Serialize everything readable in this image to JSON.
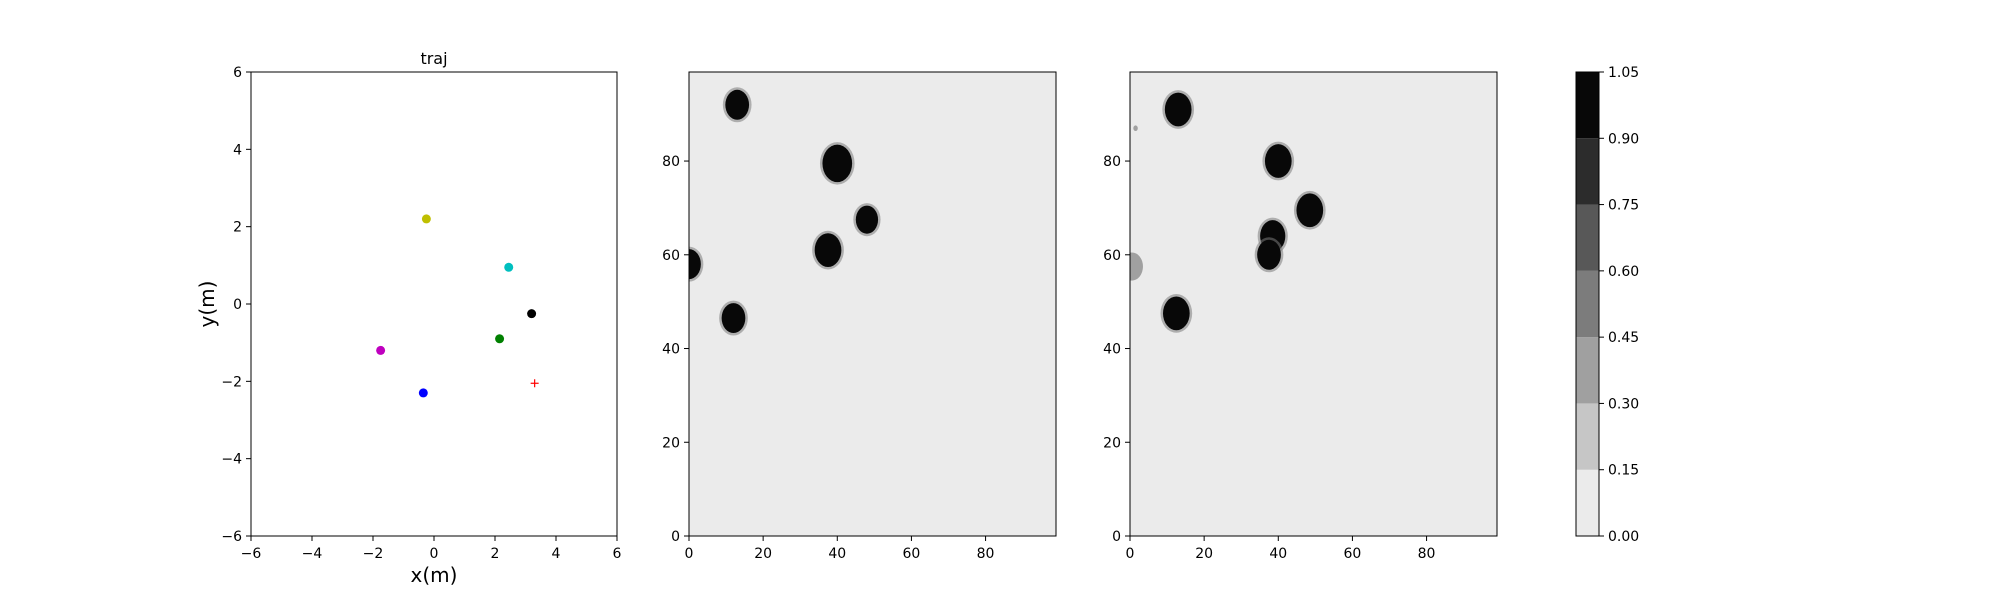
{
  "chart_data": [
    {
      "type": "scatter",
      "title": "traj",
      "xlabel": "x(m)",
      "ylabel": "y(m)",
      "xlim": [
        -6,
        6
      ],
      "ylim": [
        -6,
        6
      ],
      "xticks": [
        -6,
        -4,
        -2,
        0,
        2,
        4,
        6
      ],
      "yticks": [
        -6,
        -4,
        -2,
        0,
        2,
        4,
        6
      ],
      "grid": false,
      "points": [
        {
          "x": -0.25,
          "y": 2.2,
          "color": "#bfbf00",
          "marker": "dot"
        },
        {
          "x": 2.45,
          "y": 0.95,
          "color": "#00bfbf",
          "marker": "dot"
        },
        {
          "x": 3.2,
          "y": -0.25,
          "color": "#000000",
          "marker": "dot"
        },
        {
          "x": 2.15,
          "y": -0.9,
          "color": "#008000",
          "marker": "dot"
        },
        {
          "x": -1.75,
          "y": -1.2,
          "color": "#bf00bf",
          "marker": "dot"
        },
        {
          "x": -0.35,
          "y": -2.3,
          "color": "#0000ff",
          "marker": "dot"
        },
        {
          "x": 3.3,
          "y": -2.05,
          "color": "#ff0000",
          "marker": "plus"
        }
      ]
    },
    {
      "type": "heatmap",
      "title": "",
      "xlim": [
        0,
        99
      ],
      "ylim": [
        0,
        99
      ],
      "xticks": [
        0,
        20,
        40,
        60,
        80
      ],
      "yticks": [
        0,
        20,
        40,
        60,
        80
      ],
      "background_value": 0.05,
      "blobs": [
        {
          "cx": 13,
          "cy": 92,
          "r": 3.2,
          "value": 1.0
        },
        {
          "cx": 40,
          "cy": 79.5,
          "r": 4.0,
          "value": 1.0
        },
        {
          "cx": 48,
          "cy": 67.5,
          "r": 3.0,
          "value": 1.0
        },
        {
          "cx": 37.5,
          "cy": 61,
          "r": 3.6,
          "value": 1.0
        },
        {
          "cx": 0,
          "cy": 58,
          "r": 3.2,
          "value": 1.0
        },
        {
          "cx": 12,
          "cy": 46.5,
          "r": 3.2,
          "value": 1.0
        }
      ]
    },
    {
      "type": "heatmap",
      "title": "",
      "xlim": [
        0,
        99
      ],
      "ylim": [
        0,
        99
      ],
      "xticks": [
        0,
        20,
        40,
        60,
        80
      ],
      "yticks": [
        0,
        20,
        40,
        60,
        80
      ],
      "background_value": 0.05,
      "blobs": [
        {
          "cx": 13,
          "cy": 91,
          "r": 3.6,
          "value": 1.0
        },
        {
          "cx": 40,
          "cy": 80,
          "r": 3.6,
          "value": 1.0
        },
        {
          "cx": 48.5,
          "cy": 69.5,
          "r": 3.6,
          "value": 1.0
        },
        {
          "cx": 38.5,
          "cy": 64,
          "r": 3.4,
          "value": 1.0
        },
        {
          "cx": 37.5,
          "cy": 60,
          "r": 3.2,
          "value": 1.0
        },
        {
          "cx": 12.5,
          "cy": 47.5,
          "r": 3.6,
          "value": 1.0
        },
        {
          "cx": 0.5,
          "cy": 57.5,
          "r": 3.0,
          "value": 0.3
        },
        {
          "cx": 1.5,
          "cy": 87,
          "r": 0.6,
          "value": 0.4
        }
      ]
    }
  ],
  "colorbar": {
    "levels": [
      0.0,
      0.15,
      0.3,
      0.45,
      0.6,
      0.75,
      0.9,
      1.05
    ],
    "tick_labels": [
      "0.00",
      "0.15",
      "0.30",
      "0.45",
      "0.60",
      "0.75",
      "0.90",
      "1.05"
    ],
    "colors": [
      "#ebebeb",
      "#c6c6c6",
      "#a0a0a0",
      "#7c7c7c",
      "#585858",
      "#2c2c2c",
      "#080808"
    ]
  }
}
